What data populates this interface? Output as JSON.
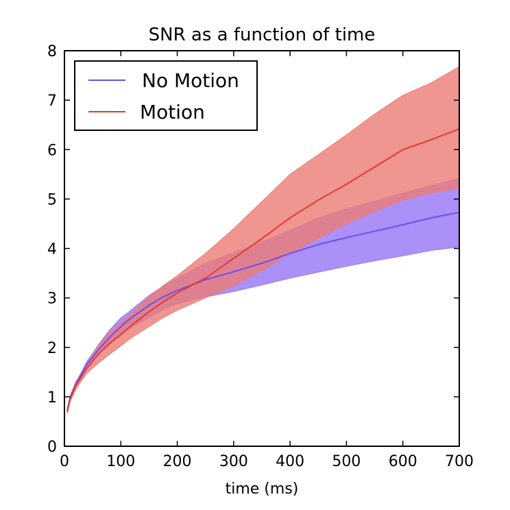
{
  "chart_data": {
    "type": "line",
    "title": "SNR as a function of time",
    "xlabel": "time (ms)",
    "ylabel": "",
    "xlim": [
      0,
      700
    ],
    "ylim": [
      0,
      8
    ],
    "xticks": [
      "0",
      "100",
      "200",
      "300",
      "400",
      "500",
      "600",
      "700"
    ],
    "yticks": [
      "0",
      "1",
      "2",
      "3",
      "4",
      "5",
      "6",
      "7",
      "8"
    ],
    "grid": false,
    "legend_position": "top-left",
    "x": [
      5,
      10,
      20,
      30,
      40,
      50,
      60,
      80,
      100,
      110,
      125,
      150,
      175,
      200,
      250,
      300,
      350,
      400,
      450,
      500,
      550,
      600,
      650,
      700
    ],
    "series": [
      {
        "name": "No Motion",
        "color": "#6a4df0",
        "band_color": "#9b7cf6",
        "mean": [
          0.72,
          0.98,
          1.25,
          1.45,
          1.66,
          1.8,
          1.95,
          2.2,
          2.42,
          2.52,
          2.65,
          2.85,
          3.02,
          3.15,
          3.37,
          3.53,
          3.7,
          3.9,
          4.08,
          4.22,
          4.35,
          4.48,
          4.62,
          4.73
        ],
        "lower": [
          0.68,
          0.94,
          1.21,
          1.41,
          1.6,
          1.74,
          1.86,
          2.06,
          2.25,
          2.33,
          2.45,
          2.6,
          2.76,
          2.88,
          3.02,
          3.13,
          3.26,
          3.4,
          3.52,
          3.64,
          3.75,
          3.85,
          3.96,
          4.03
        ],
        "upper": [
          0.76,
          1.02,
          1.3,
          1.5,
          1.72,
          1.88,
          2.05,
          2.35,
          2.6,
          2.68,
          2.82,
          3.05,
          3.24,
          3.4,
          3.7,
          3.92,
          4.13,
          4.37,
          4.62,
          4.8,
          4.96,
          5.12,
          5.27,
          5.42
        ]
      },
      {
        "name": "Motion",
        "color": "#e33a2e",
        "band_color": "#eb7c75",
        "mean": [
          0.7,
          0.95,
          1.22,
          1.4,
          1.58,
          1.72,
          1.86,
          2.08,
          2.26,
          2.36,
          2.5,
          2.72,
          2.92,
          3.1,
          3.4,
          3.8,
          4.2,
          4.62,
          4.98,
          5.3,
          5.65,
          6.0,
          6.2,
          6.42
        ],
        "lower": [
          0.66,
          0.9,
          1.15,
          1.32,
          1.48,
          1.58,
          1.68,
          1.86,
          2.03,
          2.12,
          2.24,
          2.42,
          2.6,
          2.75,
          3.0,
          3.25,
          3.55,
          3.9,
          4.2,
          4.5,
          4.75,
          4.98,
          5.12,
          5.22
        ],
        "upper": [
          0.74,
          1.0,
          1.3,
          1.48,
          1.68,
          1.86,
          2.04,
          2.3,
          2.5,
          2.6,
          2.76,
          3.02,
          3.25,
          3.45,
          3.9,
          4.4,
          4.95,
          5.5,
          5.9,
          6.3,
          6.72,
          7.1,
          7.35,
          7.68
        ]
      }
    ]
  }
}
